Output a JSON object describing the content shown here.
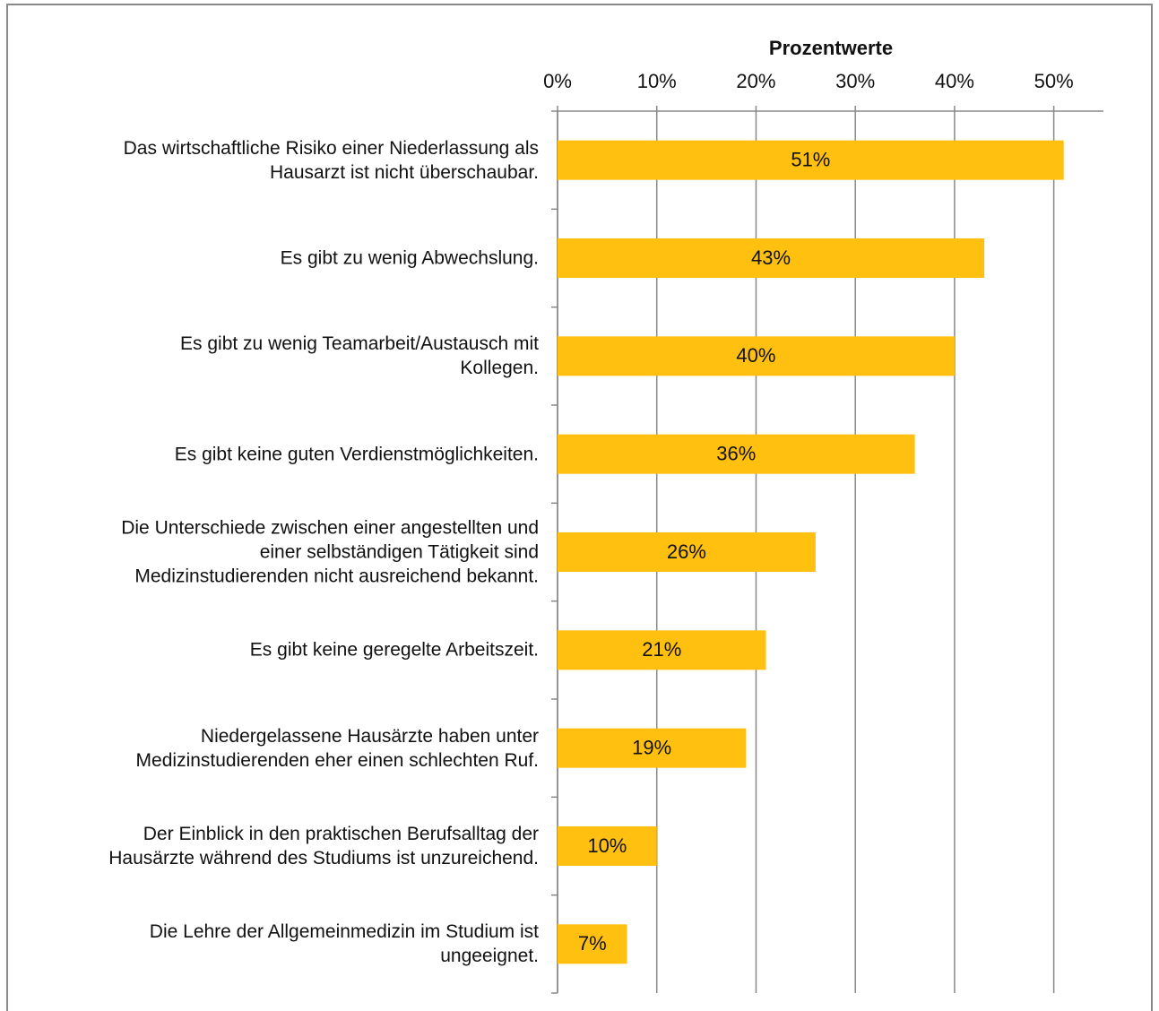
{
  "chart_data": {
    "type": "bar",
    "orientation": "horizontal",
    "x_label": "Prozentwerte",
    "categories": [
      "Das wirtschaftliche Risiko einer Niederlassung als\nHausarzt ist nicht überschaubar.",
      "Es gibt zu wenig Abwechslung.",
      "Es gibt zu wenig Teamarbeit/Austausch mit\nKollegen.",
      "Es gibt keine guten Verdienstmöglichkeiten.",
      "Die Unterschiede zwischen einer angestellten und\neiner selbständigen Tätigkeit sind\nMedizinstudierenden nicht ausreichend bekannt.",
      "Es gibt keine geregelte Arbeitszeit.",
      "Niedergelassene Hausärzte haben unter\nMedizinstudierenden eher einen schlechten Ruf.",
      "Der Einblick in den praktischen Berufsalltag der\nHausärzte während des Studiums ist unzureichend.",
      "Die Lehre der Allgemeinmedizin im Studium ist\nungeeignet."
    ],
    "values": [
      51,
      43,
      40,
      36,
      26,
      21,
      19,
      10,
      7
    ],
    "value_labels": [
      "51%",
      "43%",
      "40%",
      "36%",
      "26%",
      "21%",
      "19%",
      "10%",
      "7%"
    ],
    "color": "#ffc010",
    "xlim": [
      0,
      55
    ],
    "xticks": [
      {
        "value": 0,
        "label": "0%"
      },
      {
        "value": 10,
        "label": "10%"
      },
      {
        "value": 20,
        "label": "20%"
      },
      {
        "value": 30,
        "label": "30%"
      },
      {
        "value": 40,
        "label": "40%"
      },
      {
        "value": 50,
        "label": "50%"
      }
    ],
    "grid": true
  }
}
